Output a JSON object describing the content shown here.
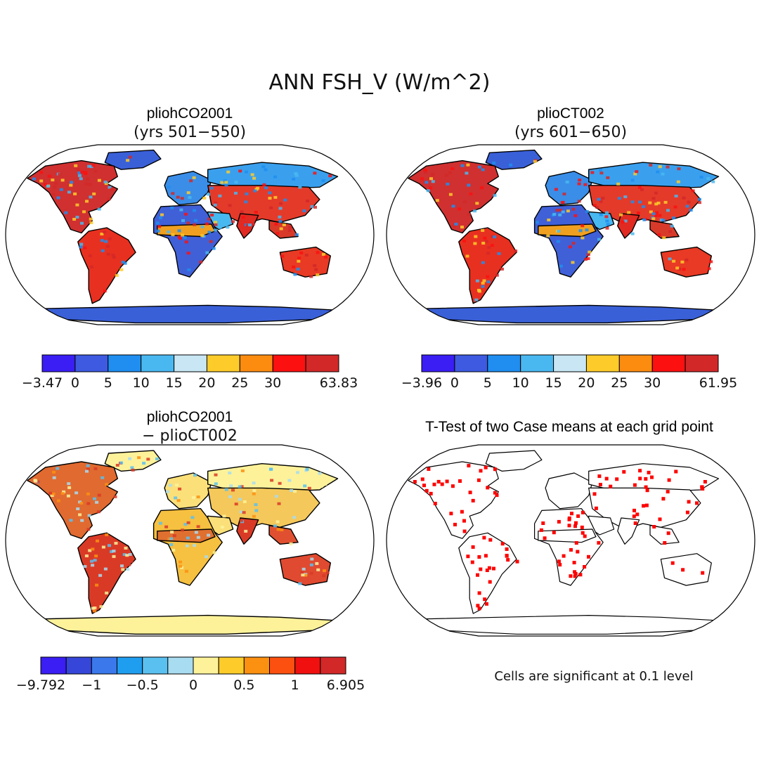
{
  "title": "ANN FSH_V (W/m^2)",
  "ocean_color": "#ffffff",
  "outline_color": "#000000",
  "panels": [
    {
      "id": "a",
      "title": "pliohCO2001",
      "subtitle": "(yrs 501−550)",
      "kind": "field",
      "land": {
        "NAm": "#d03030",
        "SAm": "#e83020",
        "Afr": "#4060d8",
        "Eur": "#3a8ee8",
        "Asia": "#e43a2a",
        "Aus": "#e83a24",
        "Grn": "#3a60d8",
        "Ant": "#3a60d8",
        "Arab": "#48b8f0",
        "Siberia": "#3aa0ee",
        "Sahel": "#f0a020",
        "India": "#e02a22",
        "SEA": "#d83a2a"
      },
      "colorbar": {
        "colors": [
          "#3a1ef4",
          "#3d5ae0",
          "#1f8ef0",
          "#4ab8f0",
          "#c8e6f4",
          "#fdcb2a",
          "#fc8c10",
          "#fc1010",
          "#d22828"
        ],
        "labels": [
          "−3.47",
          "0",
          "5",
          "10",
          "15",
          "20",
          "25",
          "30",
          "63.83"
        ]
      }
    },
    {
      "id": "b",
      "title": "plioCT002",
      "subtitle": "(yrs 601−650)",
      "kind": "field",
      "land": {
        "NAm": "#d03030",
        "SAm": "#e83020",
        "Afr": "#4060d8",
        "Eur": "#3a8ee8",
        "Asia": "#e43a2a",
        "Aus": "#e83a24",
        "Grn": "#3a60d8",
        "Ant": "#3a60d8",
        "Arab": "#48b8f0",
        "Siberia": "#3aa0ee",
        "Sahel": "#f0a020",
        "India": "#e02a22",
        "SEA": "#d83a2a"
      },
      "colorbar": {
        "colors": [
          "#3a1ef4",
          "#3d5ae0",
          "#1f8ef0",
          "#4ab8f0",
          "#c8e6f4",
          "#fdcb2a",
          "#fc8c10",
          "#fc1010",
          "#d22828"
        ],
        "labels": [
          "−3.96",
          "0",
          "5",
          "10",
          "15",
          "20",
          "25",
          "30",
          "61.95"
        ]
      }
    },
    {
      "id": "c",
      "title": "pliohCO2001",
      "subtitle": "− plioCT002",
      "kind": "field",
      "land": {
        "NAm": "#e06a30",
        "SAm": "#d93a26",
        "Afr": "#f6c040",
        "Eur": "#fbe07a",
        "Asia": "#f4c85a",
        "Aus": "#e04a30",
        "Grn": "#fdf29a",
        "Ant": "#fdf29a",
        "Arab": "#fbe07a",
        "Siberia": "#fdf29a",
        "Sahel": "#e07030",
        "India": "#d83a26",
        "SEA": "#e05030"
      },
      "colorbar": {
        "colors": [
          "#3a1ef4",
          "#3546d8",
          "#3a78ec",
          "#1f9ef0",
          "#5ac0f0",
          "#a8dcf0",
          "#fdf29a",
          "#fdcb2a",
          "#fc9010",
          "#fc5010",
          "#f01010",
          "#d22828"
        ],
        "labels": [
          "−9.792",
          "−1",
          "−0.5",
          "0",
          "0.5",
          "1",
          "6.905"
        ]
      }
    },
    {
      "id": "d",
      "title": "T-Test of two Case means at each grid point",
      "subtitle": "",
      "kind": "ttest",
      "land": {
        "NAm": "#ffffff",
        "SAm": "#ffffff",
        "Afr": "#ffffff",
        "Eur": "#ffffff",
        "Asia": "#ffffff",
        "Aus": "#ffffff",
        "Grn": "#ffffff",
        "Ant": "#ffffff",
        "Arab": "#ffffff",
        "Siberia": "#ffffff",
        "Sahel": "#ffffff",
        "India": "#ffffff",
        "SEA": "#ffffff"
      },
      "significant_color": "#ff0000",
      "note": "Cells are significant at 0.1 level"
    }
  ]
}
